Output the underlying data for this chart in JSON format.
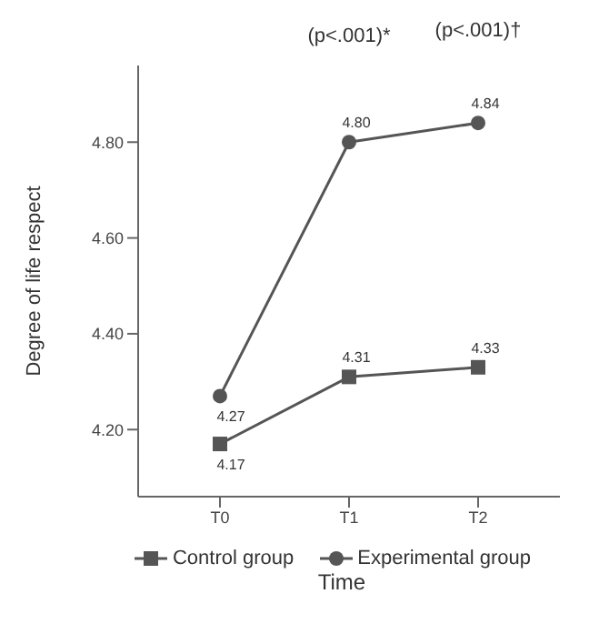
{
  "chart_data": {
    "type": "line",
    "xlabel": "Time",
    "ylabel": "Degree of life respect",
    "categories": [
      "T0",
      "T1",
      "T2"
    ],
    "series": [
      {
        "name": "Control group",
        "color": "#555555",
        "marker": "square",
        "values": [
          4.17,
          4.31,
          4.33
        ],
        "value_labels": [
          "4.17",
          "4.31",
          "4.33"
        ]
      },
      {
        "name": "Experimental group",
        "color": "#555555",
        "marker": "circle",
        "values": [
          4.27,
          4.8,
          4.84
        ],
        "value_labels": [
          "4.27",
          "4.80",
          "4.84"
        ]
      }
    ],
    "ylim": [
      4.06,
      4.96
    ],
    "yticks": [
      {
        "value": 4.2,
        "label": "4.20"
      },
      {
        "value": 4.4,
        "label": "4.40"
      },
      {
        "value": 4.6,
        "label": "4.60"
      },
      {
        "value": 4.8,
        "label": "4.80"
      }
    ],
    "annotations": [
      "(p<.001)*",
      "(p<.001)†"
    ],
    "grid": false,
    "legend": "bottom"
  }
}
